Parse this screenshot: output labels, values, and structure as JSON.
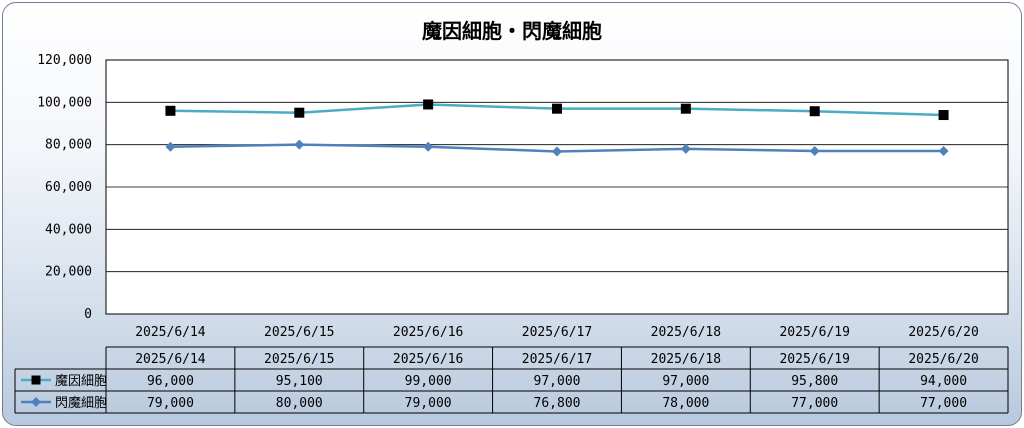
{
  "chart_data": {
    "type": "line",
    "title": "魔因細胞・閃魔細胞",
    "categories": [
      "2025/6/14",
      "2025/6/15",
      "2025/6/16",
      "2025/6/17",
      "2025/6/18",
      "2025/6/19",
      "2025/6/20"
    ],
    "series": [
      {
        "name": "魔因細胞",
        "values": [
          96000,
          95100,
          99000,
          97000,
          97000,
          95800,
          94000
        ],
        "color": "#4bacc6",
        "marker": "square"
      },
      {
        "name": "閃魔細胞",
        "values": [
          79000,
          80000,
          79000,
          76800,
          78000,
          77000,
          77000
        ],
        "color": "#4f81bd",
        "marker": "diamond"
      }
    ],
    "y_ticks": [
      "0",
      "20,000",
      "40,000",
      "60,000",
      "80,000",
      "100,000",
      "120,000"
    ],
    "ylim": [
      0,
      120000
    ],
    "grid": true,
    "legend": "data-table",
    "table": {
      "header": [
        "2025/6/14",
        "2025/6/15",
        "2025/6/16",
        "2025/6/17",
        "2025/6/18",
        "2025/6/19",
        "2025/6/20"
      ],
      "rows": [
        [
          "96,000",
          "95,100",
          "99,000",
          "97,000",
          "97,000",
          "95,800",
          "94,000"
        ],
        [
          "79,000",
          "80,000",
          "79,000",
          "76,800",
          "78,000",
          "77,000",
          "77,000"
        ]
      ]
    }
  }
}
